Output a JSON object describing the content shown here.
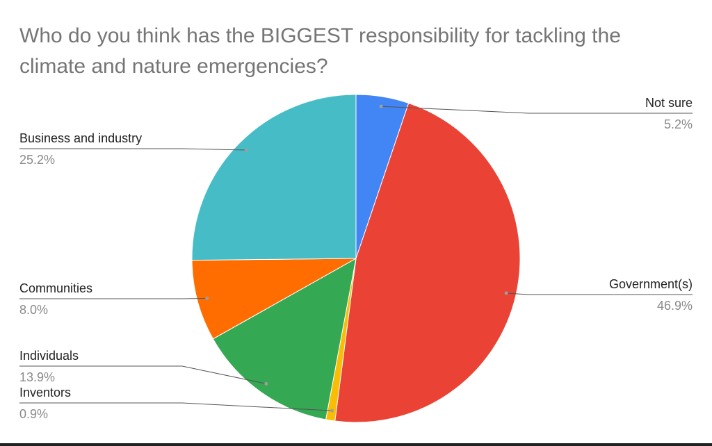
{
  "chart_data": {
    "type": "pie",
    "title": "Who do you think has the BIGGEST responsibility for tackling the climate and nature emergencies?",
    "categories": [
      "Not sure",
      "Government(s)",
      "Inventors",
      "Individuals",
      "Communities",
      "Business and industry"
    ],
    "values": [
      5.2,
      46.9,
      0.9,
      13.9,
      8.0,
      25.2
    ],
    "value_labels": [
      "5.2%",
      "46.9%",
      "0.9%",
      "13.9%",
      "8.0%",
      "25.2%"
    ],
    "colors": [
      "#4285f4",
      "#ea4335",
      "#fbbc04",
      "#34a853",
      "#ff6d01",
      "#46bdc6"
    ]
  }
}
